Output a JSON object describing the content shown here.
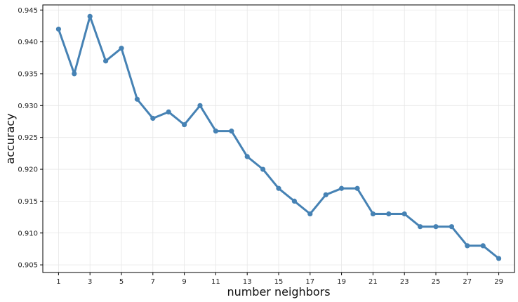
{
  "chart_data": {
    "type": "line",
    "title": "",
    "xlabel": "number neighbors",
    "ylabel": "accuracy",
    "x": [
      1,
      2,
      3,
      4,
      5,
      6,
      7,
      8,
      9,
      10,
      11,
      12,
      13,
      14,
      15,
      16,
      17,
      18,
      19,
      20,
      21,
      22,
      23,
      24,
      25,
      26,
      27,
      28,
      29
    ],
    "series": [
      {
        "values": [
          0.942,
          0.935,
          0.944,
          0.937,
          0.939,
          0.931,
          0.928,
          0.929,
          0.927,
          0.93,
          0.926,
          0.926,
          0.922,
          0.92,
          0.917,
          0.915,
          0.913,
          0.916,
          0.917,
          0.917,
          0.913,
          0.913,
          0.913,
          0.911,
          0.911,
          0.911,
          0.908,
          0.908,
          0.906
        ],
        "color": "#4682b4"
      }
    ],
    "xticks": [
      "1",
      "3",
      "5",
      "7",
      "9",
      "11",
      "13",
      "15",
      "17",
      "19",
      "21",
      "23",
      "25",
      "27",
      "29"
    ],
    "yticks": [
      "0.905",
      "0.910",
      "0.915",
      "0.920",
      "0.925",
      "0.930",
      "0.935",
      "0.940",
      "0.945"
    ],
    "xlim": [
      0.0,
      30.0
    ],
    "ylim": [
      0.9038,
      0.9458
    ],
    "grid": true,
    "marker": "circle"
  }
}
